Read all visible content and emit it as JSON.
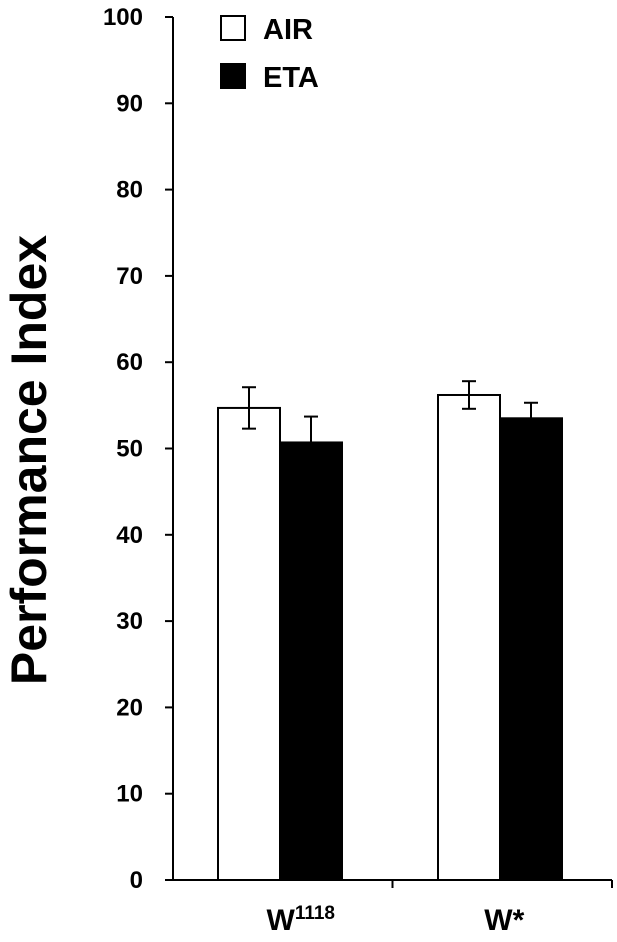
{
  "chart_data": {
    "type": "bar",
    "title": "",
    "xlabel": "",
    "ylabel": "Performance Index",
    "ylim": [
      0,
      100
    ],
    "yticks": [
      0,
      10,
      20,
      30,
      40,
      50,
      60,
      70,
      80,
      90,
      100
    ],
    "grid": false,
    "legend_position": "top-left",
    "categories": [
      {
        "base": "W",
        "sup": "1118"
      },
      {
        "base": "W*",
        "sup": ""
      }
    ],
    "series": [
      {
        "name": "AIR",
        "color": "#ffffff",
        "values": [
          54.7,
          56.2
        ],
        "errors": [
          2.4,
          1.6
        ]
      },
      {
        "name": "ETA",
        "color": "#000000",
        "values": [
          50.7,
          53.5
        ],
        "errors": [
          3.0,
          1.8
        ]
      }
    ]
  }
}
